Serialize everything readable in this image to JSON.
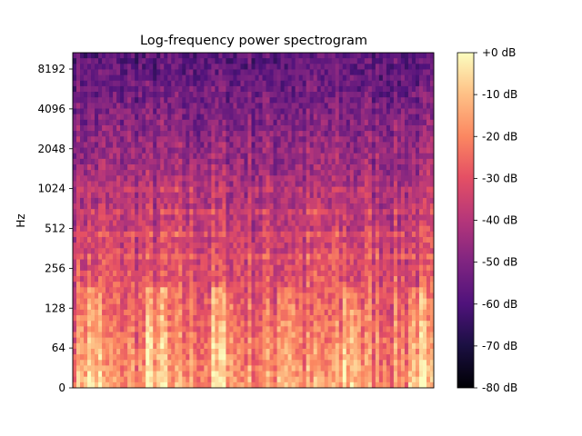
{
  "chart_data": {
    "type": "heatmap",
    "title": "Log-frequency power spectrogram",
    "ylabel": "Hz",
    "xlabel": "",
    "y_scale": "log2",
    "y_ticks": [
      "0",
      "64",
      "128",
      "256",
      "512",
      "1024",
      "2048",
      "4096",
      "8192"
    ],
    "colorbar": {
      "colormap": "magma",
      "range_db": [
        -80,
        0
      ],
      "ticks": [
        "+0 dB",
        "-10 dB",
        "-20 dB",
        "-30 dB",
        "-40 dB",
        "-50 dB",
        "-60 dB",
        "-70 dB",
        "-80 dB"
      ]
    },
    "x_ticks_visible": false,
    "grid": false
  }
}
